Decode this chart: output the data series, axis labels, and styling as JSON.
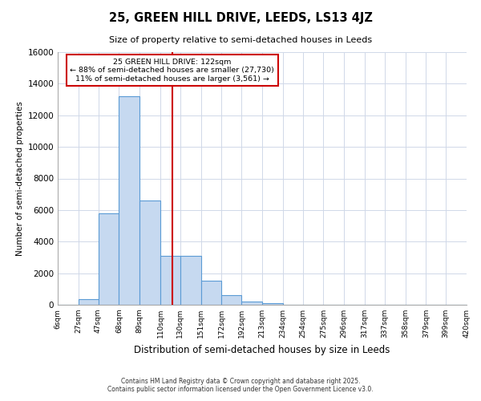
{
  "title": "25, GREEN HILL DRIVE, LEEDS, LS13 4JZ",
  "subtitle": "Size of property relative to semi-detached houses in Leeds",
  "xlabel": "Distribution of semi-detached houses by size in Leeds",
  "ylabel": "Number of semi-detached properties",
  "property_size": 122,
  "property_label": "25 GREEN HILL DRIVE: 122sqm",
  "smaller_pct": 88,
  "smaller_count": 27730,
  "larger_pct": 11,
  "larger_count": 3561,
  "bin_edges": [
    6,
    27,
    47,
    68,
    89,
    110,
    130,
    151,
    172,
    192,
    213,
    234,
    254,
    275,
    296,
    317,
    337,
    358,
    379,
    399,
    420
  ],
  "bar_heights": [
    0,
    350,
    5800,
    13200,
    6600,
    3100,
    3100,
    1500,
    600,
    200,
    100,
    0,
    0,
    0,
    0,
    0,
    0,
    0,
    0,
    0
  ],
  "bar_color": "#c6d9f0",
  "bar_edge_color": "#5b9bd5",
  "red_line_color": "#cc0000",
  "annotation_box_color": "#cc0000",
  "background_color": "#ffffff",
  "grid_color": "#d0d8e8",
  "ylim": [
    0,
    16000
  ],
  "yticks": [
    0,
    2000,
    4000,
    6000,
    8000,
    10000,
    12000,
    14000,
    16000
  ],
  "tick_labels": [
    "6sqm",
    "27sqm",
    "47sqm",
    "68sqm",
    "89sqm",
    "110sqm",
    "130sqm",
    "151sqm",
    "172sqm",
    "192sqm",
    "213sqm",
    "234sqm",
    "254sqm",
    "275sqm",
    "296sqm",
    "317sqm",
    "337sqm",
    "358sqm",
    "379sqm",
    "399sqm",
    "420sqm"
  ],
  "footer_line1": "Contains HM Land Registry data © Crown copyright and database right 2025.",
  "footer_line2": "Contains public sector information licensed under the Open Government Licence v3.0."
}
